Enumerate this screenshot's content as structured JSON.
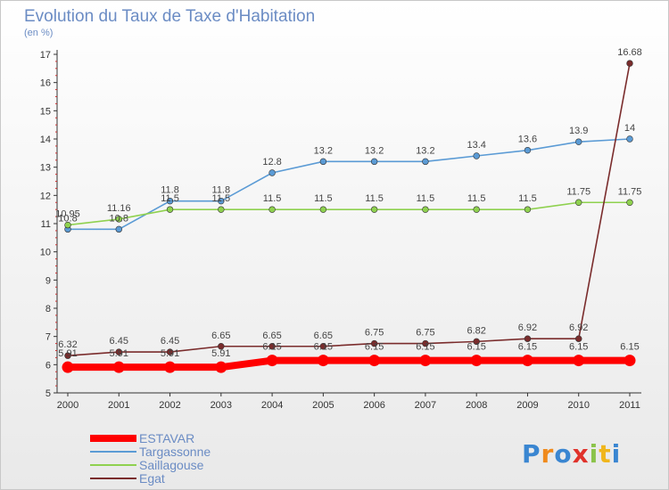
{
  "title": "Evolution du Taux de Taxe d'Habitation",
  "subtitle": "(en %)",
  "logo_text": "Proxiti",
  "chart_data": {
    "type": "line",
    "title": "Evolution du Taux de Taxe d'Habitation",
    "subtitle": "(en %)",
    "xlabel": "",
    "ylabel": "",
    "x": [
      "2000",
      "2001",
      "2002",
      "2003",
      "2004",
      "2005",
      "2006",
      "2007",
      "2008",
      "2009",
      "2010",
      "2011"
    ],
    "ylim": [
      5,
      17
    ],
    "yticks": [
      5,
      6,
      7,
      8,
      9,
      10,
      11,
      12,
      13,
      14,
      15,
      16,
      17
    ],
    "grid": false,
    "legend_position": "bottom-left",
    "series": [
      {
        "name": "ESTAVAR",
        "color": "#ff0000",
        "width": "thick",
        "values": [
          5.91,
          5.91,
          5.91,
          5.91,
          6.15,
          6.15,
          6.15,
          6.15,
          6.15,
          6.15,
          6.15,
          6.15
        ],
        "labels": [
          "5.91",
          "5.91",
          "5.91",
          "5.91",
          "6.15",
          "6.15",
          "6.15",
          "6.15",
          "6.15",
          "6.15",
          "6.15",
          "6.15"
        ]
      },
      {
        "name": "Targassonne",
        "color": "#5b9bd5",
        "values": [
          10.8,
          10.8,
          11.8,
          11.8,
          12.8,
          13.2,
          13.2,
          13.2,
          13.4,
          13.6,
          13.9,
          14
        ],
        "labels": [
          "10.8",
          "10.8",
          "11.8",
          "11.8",
          "12.8",
          "13.2",
          "13.2",
          "13.2",
          "13.4",
          "13.6",
          "13.9",
          "14"
        ]
      },
      {
        "name": "Saillagouse",
        "color": "#8fd14f",
        "values": [
          10.95,
          11.16,
          11.5,
          11.5,
          11.5,
          11.5,
          11.5,
          11.5,
          11.5,
          11.5,
          11.75,
          11.75
        ],
        "labels": [
          "10.95",
          "11.16",
          "11.5",
          "11.5",
          "11.5",
          "11.5",
          "11.5",
          "11.5",
          "11.5",
          "11.5",
          "11.75",
          "11.75"
        ]
      },
      {
        "name": "Egat",
        "color": "#7a2c2c",
        "values": [
          6.32,
          6.45,
          6.45,
          6.65,
          6.65,
          6.65,
          6.75,
          6.75,
          6.82,
          6.92,
          6.92,
          16.68
        ],
        "labels": [
          "6.32",
          "6.45",
          "6.45",
          "6.65",
          "6.65",
          "6.65",
          "6.75",
          "6.75",
          "6.82",
          "6.92",
          "6.92",
          "16.68"
        ]
      }
    ]
  }
}
